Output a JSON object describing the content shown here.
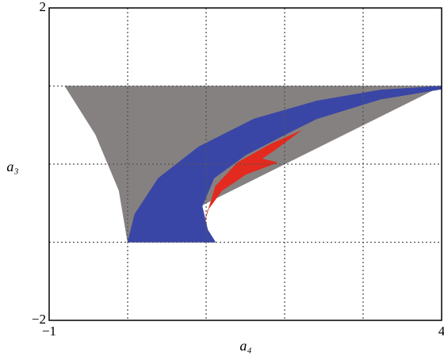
{
  "chart_data": {
    "type": "region",
    "xlabel": "a₄",
    "ylabel": "a₃",
    "xlim": [
      -1,
      4
    ],
    "ylim": [
      -2,
      2
    ],
    "xticks": [
      {
        "value": -1,
        "label": "−1"
      },
      4
    ],
    "yticks": [
      {
        "value": -2,
        "label": "−2"
      },
      2
    ],
    "xgrid": [
      0,
      1,
      2,
      3
    ],
    "ygrid": [
      -1,
      0,
      1
    ],
    "grid": true,
    "series": [
      {
        "color": "#858181",
        "x": [
          -0.8,
          4,
          0,
          -0.11,
          -0.41
        ],
        "values": [
          1,
          1,
          -1,
          -0.34,
          0.38
        ]
      },
      {
        "color": "#3a46a6",
        "x": [
          0,
          0.09,
          0.39,
          0.9,
          1.61,
          2.41,
          3.22,
          4,
          4,
          3.22,
          2.41,
          2.01,
          1.51,
          1.1,
          0.95,
          1.02,
          1.12
        ],
        "values": [
          -1,
          -0.64,
          -0.18,
          0.22,
          0.58,
          0.81,
          0.95,
          1,
          0.96,
          0.83,
          0.58,
          0.38,
          0.12,
          -0.18,
          -0.54,
          -0.84,
          -1
        ]
      },
      {
        "color": "#e32a1f",
        "x": [
          2.21,
          1.86,
          1.71,
          1.91,
          1.51,
          1.2,
          1.02,
          0.98,
          1.12,
          1.4,
          1.81
        ],
        "values": [
          0.43,
          0.17,
          0.07,
          0.02,
          -0.13,
          -0.34,
          -0.59,
          -0.74,
          -0.28,
          0.02,
          0.25
        ]
      }
    ]
  }
}
